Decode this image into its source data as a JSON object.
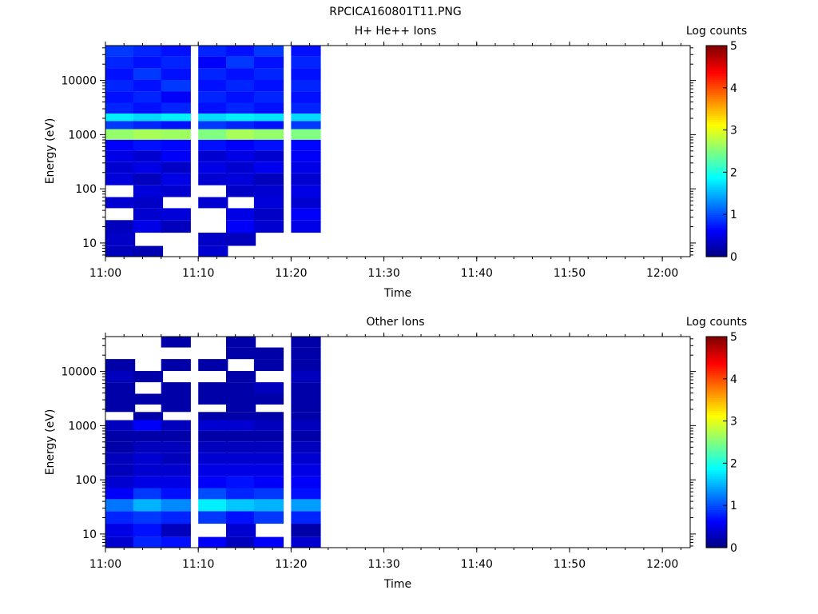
{
  "figure_title": "RPCICA160801T11.PNG",
  "colorbar_ticks": [
    "0",
    "1",
    "2",
    "3",
    "4",
    "5"
  ],
  "chart_data": [
    {
      "type": "heatmap",
      "title": "H+ He++ Ions",
      "xlabel": "Time",
      "ylabel": "Energy (eV)",
      "colorbar_label": "Log counts",
      "x_ticks": [
        "11:00",
        "11:10",
        "11:20",
        "11:30",
        "11:40",
        "11:50",
        "12:00"
      ],
      "y_ticks": [
        "10",
        "100",
        "1000",
        "10000"
      ],
      "y_scale": "log",
      "xlim": [
        "11:00",
        "12:03"
      ],
      "ylim": [
        5.6,
        44000
      ],
      "clim": [
        0,
        5
      ],
      "colormap": "jet",
      "time_columns": [
        "11:00",
        "11:03",
        "11:06",
        "11:10",
        "11:13",
        "11:16",
        "11:20"
      ],
      "energy_bands_eV": [
        6.5,
        12,
        20,
        35,
        55,
        90,
        150,
        250,
        400,
        650,
        1000,
        1600,
        2000,
        3000,
        5000,
        8000,
        13000,
        22000,
        35000
      ],
      "log_counts": [
        [
          0.3,
          0.35,
          0.3,
          null,
          0.4,
          null,
          0.45,
          0.4,
          0.5,
          0.6,
          2.6,
          0.9,
          1.8,
          0.8,
          0.7,
          0.8,
          0.7,
          0.8,
          0.9
        ],
        [
          0.25,
          null,
          0.5,
          0.4,
          0.35,
          0.45,
          0.3,
          0.5,
          0.4,
          0.7,
          2.7,
          0.8,
          1.7,
          0.7,
          0.8,
          0.7,
          0.9,
          0.7,
          0.8
        ],
        [
          null,
          null,
          0.3,
          0.45,
          null,
          0.4,
          0.5,
          0.35,
          0.6,
          0.65,
          2.65,
          0.7,
          1.8,
          0.8,
          0.6,
          0.9,
          0.7,
          0.8,
          0.7
        ],
        [
          0.4,
          0.35,
          null,
          null,
          0.4,
          null,
          0.4,
          0.5,
          0.4,
          0.7,
          2.5,
          0.9,
          1.7,
          0.7,
          0.8,
          0.7,
          0.8,
          0.6,
          0.8
        ],
        [
          null,
          0.3,
          0.6,
          0.5,
          null,
          0.35,
          0.45,
          0.4,
          0.5,
          0.6,
          2.7,
          0.8,
          1.8,
          0.8,
          0.7,
          0.8,
          0.7,
          0.9,
          0.7
        ],
        [
          null,
          null,
          0.4,
          0.35,
          0.45,
          0.4,
          0.3,
          0.55,
          0.4,
          0.7,
          2.6,
          0.7,
          1.75,
          0.7,
          0.8,
          0.7,
          0.8,
          0.7,
          0.9
        ],
        [
          null,
          null,
          0.5,
          0.6,
          0.4,
          0.5,
          0.4,
          0.5,
          0.6,
          0.65,
          2.5,
          0.9,
          1.7,
          0.8,
          0.7,
          0.8,
          0.7,
          0.8,
          0.7
        ]
      ]
    },
    {
      "type": "heatmap",
      "title": "Other Ions",
      "xlabel": "Time",
      "ylabel": "Energy (eV)",
      "colorbar_label": "Log counts",
      "x_ticks": [
        "11:00",
        "11:10",
        "11:20",
        "11:30",
        "11:40",
        "11:50",
        "12:00"
      ],
      "y_ticks": [
        "10",
        "100",
        "1000",
        "10000"
      ],
      "y_scale": "log",
      "xlim": [
        "11:00",
        "12:03"
      ],
      "ylim": [
        5.6,
        44000
      ],
      "clim": [
        0,
        5
      ],
      "colormap": "jet",
      "time_columns": [
        "11:00",
        "11:03",
        "11:06",
        "11:10",
        "11:13",
        "11:16",
        "11:20"
      ],
      "energy_bands_eV": [
        6.5,
        12,
        20,
        35,
        55,
        90,
        150,
        250,
        400,
        650,
        1000,
        1600,
        2000,
        3000,
        5000,
        8000,
        13000,
        22000,
        35000
      ],
      "log_counts": [
        [
          0.4,
          0.5,
          0.8,
          1.2,
          0.6,
          0.4,
          0.3,
          0.3,
          0.2,
          0.2,
          0.3,
          null,
          0.2,
          0.2,
          0.2,
          0.3,
          0.2,
          null,
          null
        ],
        [
          0.8,
          0.7,
          0.9,
          1.5,
          0.9,
          0.5,
          0.4,
          0.4,
          0.3,
          0.2,
          0.6,
          0.2,
          null,
          0.2,
          null,
          0.2,
          null,
          null,
          null
        ],
        [
          0.7,
          0.3,
          0.8,
          1.3,
          0.7,
          0.5,
          0.4,
          0.3,
          0.3,
          0.2,
          0.3,
          null,
          0.2,
          0.2,
          0.2,
          null,
          0.2,
          null,
          0.2
        ],
        [
          0.6,
          null,
          0.9,
          1.8,
          1.0,
          0.6,
          0.5,
          0.4,
          0.3,
          0.2,
          0.4,
          0.2,
          null,
          0.2,
          0.2,
          null,
          0.2,
          null,
          null
        ],
        [
          0.3,
          0.4,
          0.7,
          1.6,
          0.8,
          0.7,
          0.5,
          0.4,
          0.3,
          0.2,
          0.4,
          0.2,
          0.2,
          0.2,
          0.2,
          0.2,
          null,
          0.2,
          0.2
        ],
        [
          0.6,
          null,
          0.9,
          1.5,
          0.9,
          0.6,
          0.5,
          0.4,
          0.3,
          0.2,
          0.3,
          0.2,
          null,
          0.2,
          0.3,
          null,
          0.2,
          0.2,
          null
        ],
        [
          0.4,
          0.2,
          0.8,
          1.4,
          0.7,
          0.6,
          0.5,
          0.4,
          0.3,
          0.2,
          0.3,
          0.2,
          0.2,
          0.2,
          0.2,
          0.3,
          0.2,
          0.2,
          0.2
        ]
      ]
    }
  ]
}
